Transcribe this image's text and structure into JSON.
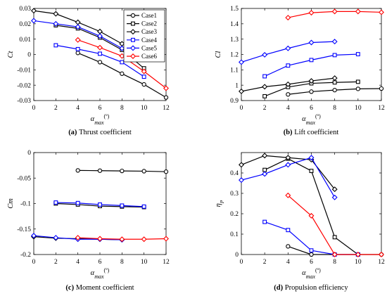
{
  "chart_data": [
    {
      "type": "line",
      "panel_letter": "(a)",
      "caption": "Thrust coefficient",
      "ylabel": "Ct",
      "xlabel": "α",
      "xlabel_sub": "max",
      "xlabel_unit": "(º)",
      "xlim": [
        0,
        12
      ],
      "ylim": [
        -0.03,
        0.03
      ],
      "xticks": [
        "0",
        "2",
        "4",
        "6",
        "8",
        "10",
        "12"
      ],
      "yticks": [
        "-0.03",
        "-0.02",
        "-0.01",
        "0",
        "0.01",
        "0.02",
        "0.03"
      ],
      "legend": {
        "position": "top-right",
        "entries": [
          "Case1",
          "Case2",
          "Case3",
          "Case4",
          "Case5",
          "Case6"
        ]
      },
      "series": [
        {
          "name": "Case1",
          "color": "#000000",
          "marker": "circle",
          "x": [
            4,
            6,
            8,
            10,
            12
          ],
          "y": [
            0.001,
            -0.005,
            -0.0125,
            -0.0195,
            -0.028
          ]
        },
        {
          "name": "Case2",
          "color": "#000000",
          "marker": "square",
          "x": [
            2,
            4,
            6,
            8,
            10
          ],
          "y": [
            0.019,
            0.017,
            0.011,
            0.003,
            -0.009
          ]
        },
        {
          "name": "Case3",
          "color": "#000000",
          "marker": "diamond",
          "x": [
            0,
            2,
            4,
            6,
            8
          ],
          "y": [
            0.0285,
            0.0265,
            0.021,
            0.015,
            0.007
          ]
        },
        {
          "name": "Case4",
          "color": "#0000ff",
          "marker": "square",
          "x": [
            2,
            4,
            6,
            8,
            10
          ],
          "y": [
            0.006,
            0.0035,
            0.0005,
            -0.005,
            -0.0145
          ]
        },
        {
          "name": "Case5",
          "color": "#0000ff",
          "marker": "diamond",
          "x": [
            0,
            2,
            4,
            6,
            8
          ],
          "y": [
            0.022,
            0.02,
            0.018,
            0.012,
            0.004
          ]
        },
        {
          "name": "Case6",
          "color": "#ff0000",
          "marker": "diamond",
          "x": [
            4,
            6,
            8,
            10,
            12
          ],
          "y": [
            0.0095,
            0.0045,
            -0.001,
            -0.011,
            -0.022
          ]
        }
      ]
    },
    {
      "type": "line",
      "panel_letter": "(b)",
      "caption": "Lift coefficient",
      "ylabel": "Cl",
      "xlabel": "α",
      "xlabel_sub": "max",
      "xlabel_unit": "(º)",
      "xlim": [
        0,
        12
      ],
      "ylim": [
        0.9,
        1.5
      ],
      "xticks": [
        "0",
        "2",
        "4",
        "6",
        "8",
        "10",
        "12"
      ],
      "yticks": [
        "0.9",
        "1",
        "1.1",
        "1.2",
        "1.3",
        "1.4",
        "1.5"
      ],
      "series": [
        {
          "name": "Case1",
          "color": "#000000",
          "marker": "circle",
          "x": [
            4,
            6,
            8,
            10,
            12
          ],
          "y": [
            0.94,
            0.958,
            0.968,
            0.976,
            0.978
          ]
        },
        {
          "name": "Case2",
          "color": "#000000",
          "marker": "square",
          "x": [
            2,
            4,
            6,
            8,
            10
          ],
          "y": [
            0.928,
            0.988,
            1.012,
            1.018,
            1.022
          ]
        },
        {
          "name": "Case3",
          "color": "#000000",
          "marker": "diamond",
          "x": [
            0,
            2,
            4,
            6,
            8
          ],
          "y": [
            0.96,
            0.99,
            1.006,
            1.028,
            1.046
          ]
        },
        {
          "name": "Case4",
          "color": "#0000ff",
          "marker": "square",
          "x": [
            2,
            4,
            6,
            8,
            10
          ],
          "y": [
            1.058,
            1.128,
            1.164,
            1.196,
            1.202
          ]
        },
        {
          "name": "Case5",
          "color": "#0000ff",
          "marker": "diamond",
          "x": [
            0,
            2,
            4,
            6,
            8
          ],
          "y": [
            1.15,
            1.198,
            1.24,
            1.278,
            1.284
          ]
        },
        {
          "name": "Case6",
          "color": "#ff0000",
          "marker": "diamond",
          "x": [
            4,
            6,
            8,
            10,
            12
          ],
          "y": [
            1.44,
            1.472,
            1.48,
            1.48,
            1.475
          ]
        }
      ]
    },
    {
      "type": "line",
      "panel_letter": "(c)",
      "caption": "Moment coefficient",
      "ylabel": "Cm",
      "xlabel": "α",
      "xlabel_sub": "max",
      "xlabel_unit": "(º)",
      "xlim": [
        0,
        12
      ],
      "ylim": [
        -0.2,
        0
      ],
      "xticks": [
        "0",
        "2",
        "4",
        "6",
        "8",
        "10",
        "12"
      ],
      "yticks": [
        "-0.2",
        "-0.15",
        "-0.1",
        "-0.05",
        "0"
      ],
      "series": [
        {
          "name": "Case1",
          "color": "#000000",
          "marker": "circle",
          "x": [
            4,
            6,
            8,
            10,
            12
          ],
          "y": [
            -0.035,
            -0.0355,
            -0.036,
            -0.0365,
            -0.0375
          ]
        },
        {
          "name": "Case2",
          "color": "#000000",
          "marker": "square",
          "x": [
            2,
            4,
            6,
            8,
            10
          ],
          "y": [
            -0.1,
            -0.102,
            -0.105,
            -0.106,
            -0.107
          ]
        },
        {
          "name": "Case3",
          "color": "#000000",
          "marker": "diamond",
          "x": [
            0,
            2,
            4,
            6,
            8
          ],
          "y": [
            -0.165,
            -0.168,
            -0.169,
            -0.17,
            -0.171
          ]
        },
        {
          "name": "Case4",
          "color": "#0000ff",
          "marker": "square",
          "x": [
            2,
            4,
            6,
            8,
            10
          ],
          "y": [
            -0.098,
            -0.099,
            -0.102,
            -0.104,
            -0.106
          ]
        },
        {
          "name": "Case5",
          "color": "#0000ff",
          "marker": "diamond",
          "x": [
            0,
            2,
            4,
            6,
            8
          ],
          "y": [
            -0.163,
            -0.167,
            -0.17,
            -0.17,
            -0.171
          ]
        },
        {
          "name": "Case6",
          "color": "#ff0000",
          "marker": "diamond",
          "x": [
            4,
            6,
            8,
            10,
            12
          ],
          "y": [
            -0.167,
            -0.169,
            -0.17,
            -0.17,
            -0.169
          ]
        }
      ]
    },
    {
      "type": "line",
      "panel_letter": "(d)",
      "caption": "Propulsion efficiency",
      "ylabel": "η",
      "ylabel_sub": "P",
      "xlabel": "α",
      "xlabel_sub": "max",
      "xlabel_unit": "(º)",
      "xlim": [
        0,
        12
      ],
      "ylim": [
        0,
        0.5
      ],
      "xticks": [
        "0",
        "2",
        "4",
        "6",
        "8",
        "10",
        "12"
      ],
      "yticks": [
        "0",
        "0.1",
        "0.2",
        "0.3",
        "0.4"
      ],
      "series": [
        {
          "name": "Case1",
          "color": "#000000",
          "marker": "circle",
          "x": [
            4,
            6,
            8,
            10,
            12
          ],
          "y": [
            0.04,
            0.0,
            0.0,
            0.0,
            0.0
          ]
        },
        {
          "name": "Case2",
          "color": "#000000",
          "marker": "square",
          "x": [
            2,
            4,
            6,
            8,
            10
          ],
          "y": [
            0.415,
            0.47,
            0.41,
            0.085,
            0.0
          ]
        },
        {
          "name": "Case3",
          "color": "#000000",
          "marker": "diamond",
          "x": [
            0,
            2,
            4,
            6,
            8
          ],
          "y": [
            0.44,
            0.485,
            0.475,
            0.465,
            0.32
          ]
        },
        {
          "name": "Case4",
          "color": "#0000ff",
          "marker": "square",
          "x": [
            2,
            4,
            6,
            8,
            10
          ],
          "y": [
            0.16,
            0.12,
            0.02,
            0.0,
            0.0
          ]
        },
        {
          "name": "Case5",
          "color": "#0000ff",
          "marker": "diamond",
          "x": [
            0,
            2,
            4,
            6,
            8
          ],
          "y": [
            0.365,
            0.395,
            0.44,
            0.475,
            0.28
          ]
        },
        {
          "name": "Case6",
          "color": "#ff0000",
          "marker": "diamond",
          "x": [
            4,
            6,
            8,
            10,
            12
          ],
          "y": [
            0.29,
            0.19,
            0.0,
            0.0,
            0.0
          ]
        }
      ]
    }
  ]
}
